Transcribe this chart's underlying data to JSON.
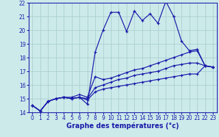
{
  "xlabel": "Graphe des températures (°c)",
  "x_values": [
    0,
    1,
    2,
    3,
    4,
    5,
    6,
    7,
    8,
    9,
    10,
    11,
    12,
    13,
    14,
    15,
    16,
    17,
    18,
    19,
    20,
    21,
    22,
    23
  ],
  "series1": [
    14.5,
    14.1,
    14.8,
    15.0,
    15.1,
    15.0,
    15.1,
    14.6,
    18.4,
    20.0,
    21.3,
    21.3,
    19.9,
    21.4,
    20.7,
    21.2,
    20.5,
    22.1,
    21.0,
    19.2,
    18.5,
    18.6,
    17.4,
    17.3
  ],
  "series2": [
    14.5,
    14.1,
    14.8,
    15.0,
    15.1,
    15.1,
    15.3,
    15.1,
    16.6,
    16.4,
    16.5,
    16.7,
    16.9,
    17.1,
    17.2,
    17.4,
    17.6,
    17.8,
    18.0,
    18.2,
    18.4,
    18.5,
    17.4,
    17.3
  ],
  "series3": [
    14.5,
    14.1,
    14.8,
    15.0,
    15.1,
    15.0,
    15.1,
    15.0,
    15.8,
    16.0,
    16.2,
    16.4,
    16.5,
    16.7,
    16.8,
    16.9,
    17.0,
    17.2,
    17.4,
    17.5,
    17.6,
    17.6,
    17.4,
    17.3
  ],
  "series4": [
    14.5,
    14.1,
    14.8,
    15.0,
    15.1,
    15.0,
    15.1,
    14.9,
    15.5,
    15.7,
    15.8,
    15.9,
    16.0,
    16.1,
    16.2,
    16.3,
    16.4,
    16.5,
    16.6,
    16.7,
    16.8,
    16.8,
    17.4,
    17.3
  ],
  "line_color": "#1a1aaa",
  "bg_color": "#cceaea",
  "grid_color": "#aacece",
  "ylim": [
    14,
    22
  ],
  "yticks": [
    14,
    15,
    16,
    17,
    18,
    19,
    20,
    21,
    22
  ],
  "xticks": [
    0,
    1,
    2,
    3,
    4,
    5,
    6,
    7,
    8,
    9,
    10,
    11,
    12,
    13,
    14,
    15,
    16,
    17,
    18,
    19,
    20,
    21,
    22,
    23
  ],
  "xlabel_fontsize": 7,
  "tick_fontsize": 5.5,
  "marker_size": 3.5,
  "linewidth": 0.9
}
